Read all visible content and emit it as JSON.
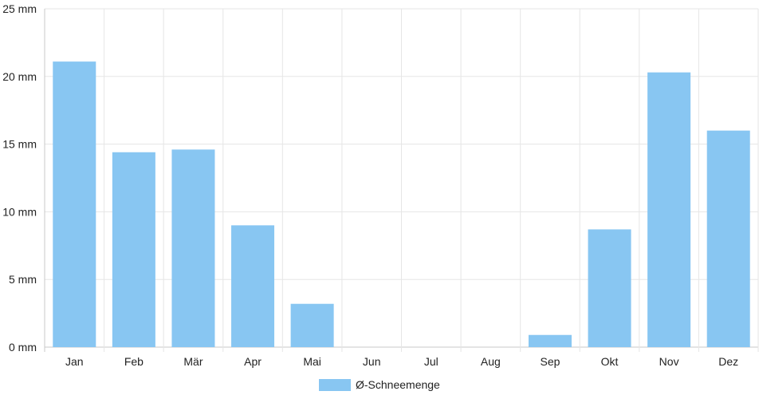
{
  "chart_data": {
    "type": "bar",
    "categories": [
      "Jan",
      "Feb",
      "Mär",
      "Apr",
      "Mai",
      "Jun",
      "Jul",
      "Aug",
      "Sep",
      "Okt",
      "Nov",
      "Dez"
    ],
    "series": [
      {
        "name": "Ø-Schneemenge",
        "values": [
          21.1,
          14.4,
          14.6,
          9.0,
          3.2,
          0,
          0,
          0,
          0.9,
          8.7,
          20.3,
          16.0
        ]
      }
    ],
    "y_ticks": [
      "0 mm",
      "5 mm",
      "10 mm",
      "15 mm",
      "20 mm",
      "25 mm"
    ],
    "ylim": [
      0,
      25
    ],
    "y_unit": "mm",
    "grid": true,
    "legend_position": "bottom",
    "colors": {
      "bar": "#88c6f2",
      "grid": "#e6e6e6",
      "axis": "#c8c8c8",
      "text": "#222222"
    }
  }
}
